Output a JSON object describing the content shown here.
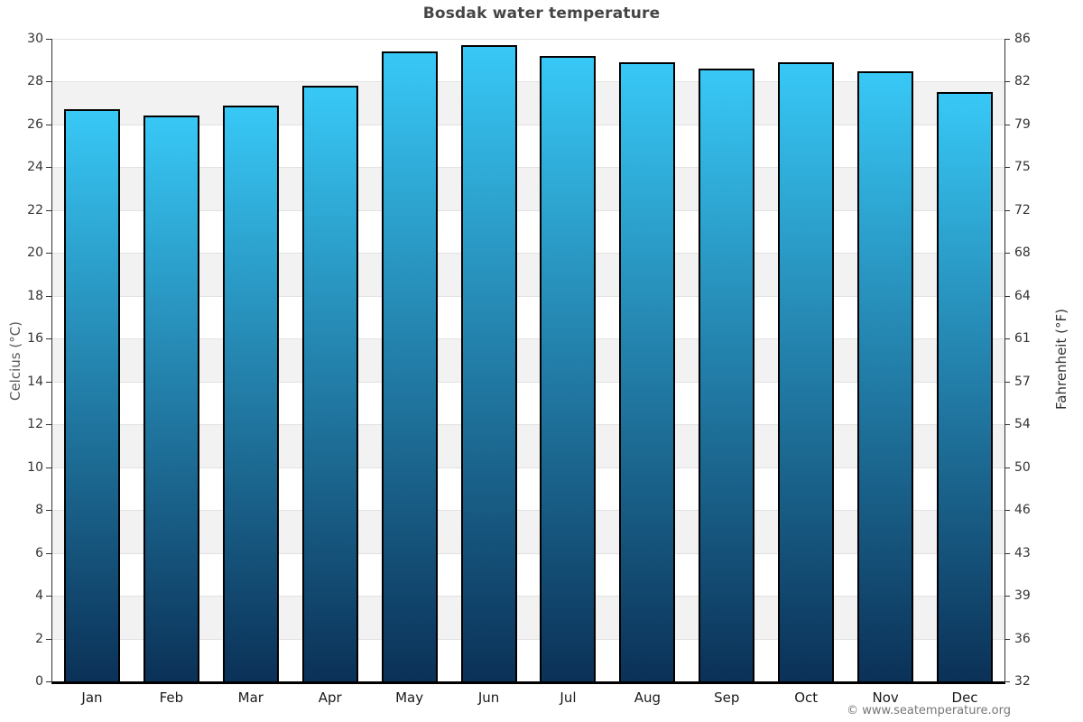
{
  "watermark": "© www.seatemperature.org",
  "chart_data": {
    "type": "bar",
    "title": "Bosdak water temperature",
    "categories": [
      "Jan",
      "Feb",
      "Mar",
      "Apr",
      "May",
      "Jun",
      "Jul",
      "Aug",
      "Sep",
      "Oct",
      "Nov",
      "Dec"
    ],
    "values": [
      26.7,
      26.4,
      26.9,
      27.8,
      29.4,
      29.7,
      29.2,
      28.9,
      28.6,
      28.9,
      28.5,
      27.5
    ],
    "series_unit": "°C",
    "xlabel": "",
    "ylabel_left": "Celcius (°C)",
    "ylabel_right": "Fahrenheit (°F)",
    "ylim": [
      0,
      30
    ],
    "yticks_left": [
      30,
      28,
      26,
      24,
      22,
      20,
      18,
      16,
      14,
      12,
      10,
      8,
      6,
      4,
      2,
      0
    ],
    "yticks_right": [
      86,
      82,
      79,
      75,
      72,
      68,
      64,
      61,
      57,
      54,
      50,
      46,
      43,
      39,
      36,
      32
    ],
    "grid": "horizontal-bands-alternating",
    "legend": "none",
    "colors": {
      "bar_gradient_top": "#38c8f6",
      "bar_gradient_bottom": "#0b3157",
      "band_gray": "#f2f2f2",
      "band_white": "#ffffff",
      "gridline": "#e2e2e2",
      "axis_line": "#333333",
      "x_axis_line": "#000000",
      "title_text": "#454545",
      "tick_text": "#333333",
      "month_text": "#1a1a1a",
      "axis_title_left_text": "#5a5a5a",
      "axis_title_right_text": "#333333",
      "watermark_text": "#777777"
    }
  }
}
